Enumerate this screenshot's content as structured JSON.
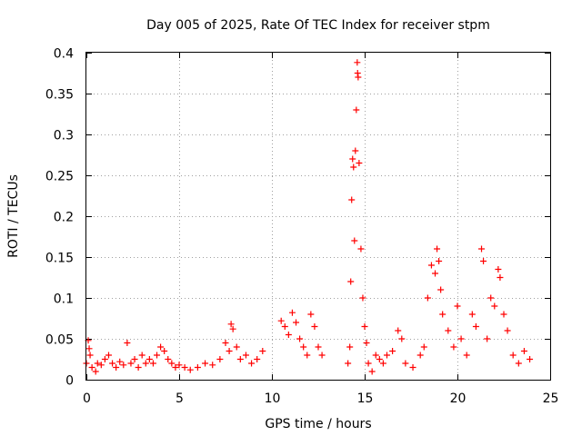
{
  "chart_data": {
    "type": "scatter",
    "title": "Day 005 of 2025, Rate Of TEC Index for receiver stpm",
    "xlabel": "GPS time / hours",
    "ylabel": "ROTI / TECUs",
    "xlim": [
      0,
      25
    ],
    "ylim": [
      0,
      0.4
    ],
    "xticks": [
      "0",
      "5",
      "10",
      "15",
      "20",
      "25"
    ],
    "yticks": [
      "0",
      "0.05",
      "0.1",
      "0.15",
      "0.2",
      "0.25",
      "0.3",
      "0.35",
      "0.4"
    ],
    "grid": true,
    "marker": "+",
    "series": [
      {
        "name": "ROTI",
        "color": "#ff0000",
        "points": [
          [
            0.0,
            0.02
          ],
          [
            0.1,
            0.048
          ],
          [
            0.15,
            0.038
          ],
          [
            0.2,
            0.03
          ],
          [
            0.3,
            0.015
          ],
          [
            0.5,
            0.01
          ],
          [
            0.6,
            0.02
          ],
          [
            0.8,
            0.018
          ],
          [
            1.0,
            0.025
          ],
          [
            1.2,
            0.03
          ],
          [
            1.4,
            0.02
          ],
          [
            1.6,
            0.015
          ],
          [
            1.8,
            0.022
          ],
          [
            2.0,
            0.018
          ],
          [
            2.2,
            0.045
          ],
          [
            2.4,
            0.02
          ],
          [
            2.6,
            0.025
          ],
          [
            2.8,
            0.015
          ],
          [
            3.0,
            0.03
          ],
          [
            3.2,
            0.02
          ],
          [
            3.4,
            0.025
          ],
          [
            3.6,
            0.02
          ],
          [
            3.8,
            0.03
          ],
          [
            4.0,
            0.04
          ],
          [
            4.2,
            0.035
          ],
          [
            4.4,
            0.025
          ],
          [
            4.6,
            0.02
          ],
          [
            4.8,
            0.015
          ],
          [
            5.0,
            0.018
          ],
          [
            5.3,
            0.015
          ],
          [
            5.6,
            0.012
          ],
          [
            6.0,
            0.015
          ],
          [
            6.4,
            0.02
          ],
          [
            6.8,
            0.018
          ],
          [
            7.2,
            0.025
          ],
          [
            7.5,
            0.045
          ],
          [
            7.7,
            0.035
          ],
          [
            7.8,
            0.068
          ],
          [
            7.9,
            0.062
          ],
          [
            8.1,
            0.04
          ],
          [
            8.3,
            0.025
          ],
          [
            8.6,
            0.03
          ],
          [
            8.9,
            0.02
          ],
          [
            9.2,
            0.025
          ],
          [
            9.5,
            0.035
          ],
          [
            10.5,
            0.072
          ],
          [
            10.7,
            0.065
          ],
          [
            10.9,
            0.055
          ],
          [
            11.1,
            0.082
          ],
          [
            11.3,
            0.07
          ],
          [
            11.5,
            0.05
          ],
          [
            11.7,
            0.04
          ],
          [
            11.9,
            0.03
          ],
          [
            12.1,
            0.08
          ],
          [
            12.3,
            0.065
          ],
          [
            12.5,
            0.04
          ],
          [
            12.7,
            0.03
          ],
          [
            14.1,
            0.02
          ],
          [
            14.2,
            0.04
          ],
          [
            14.25,
            0.12
          ],
          [
            14.3,
            0.22
          ],
          [
            14.35,
            0.27
          ],
          [
            14.4,
            0.26
          ],
          [
            14.45,
            0.17
          ],
          [
            14.5,
            0.28
          ],
          [
            14.55,
            0.33
          ],
          [
            14.6,
            0.388
          ],
          [
            14.62,
            0.375
          ],
          [
            14.65,
            0.37
          ],
          [
            14.7,
            0.265
          ],
          [
            14.8,
            0.16
          ],
          [
            14.9,
            0.1
          ],
          [
            15.0,
            0.065
          ],
          [
            15.1,
            0.045
          ],
          [
            15.2,
            0.02
          ],
          [
            15.4,
            0.01
          ],
          [
            15.6,
            0.03
          ],
          [
            15.8,
            0.025
          ],
          [
            16.0,
            0.02
          ],
          [
            16.2,
            0.03
          ],
          [
            16.5,
            0.035
          ],
          [
            16.8,
            0.06
          ],
          [
            17.0,
            0.05
          ],
          [
            17.2,
            0.02
          ],
          [
            17.6,
            0.015
          ],
          [
            18.0,
            0.03
          ],
          [
            18.2,
            0.04
          ],
          [
            18.4,
            0.1
          ],
          [
            18.6,
            0.14
          ],
          [
            18.8,
            0.13
          ],
          [
            18.9,
            0.16
          ],
          [
            19.0,
            0.145
          ],
          [
            19.1,
            0.11
          ],
          [
            19.2,
            0.08
          ],
          [
            19.5,
            0.06
          ],
          [
            19.8,
            0.04
          ],
          [
            20.0,
            0.09
          ],
          [
            20.2,
            0.05
          ],
          [
            20.5,
            0.03
          ],
          [
            20.8,
            0.08
          ],
          [
            21.0,
            0.065
          ],
          [
            21.3,
            0.16
          ],
          [
            21.4,
            0.145
          ],
          [
            21.6,
            0.05
          ],
          [
            21.8,
            0.1
          ],
          [
            22.0,
            0.09
          ],
          [
            22.2,
            0.135
          ],
          [
            22.3,
            0.125
          ],
          [
            22.5,
            0.08
          ],
          [
            22.7,
            0.06
          ],
          [
            23.0,
            0.03
          ],
          [
            23.3,
            0.02
          ],
          [
            23.6,
            0.035
          ],
          [
            23.9,
            0.025
          ]
        ]
      }
    ]
  }
}
